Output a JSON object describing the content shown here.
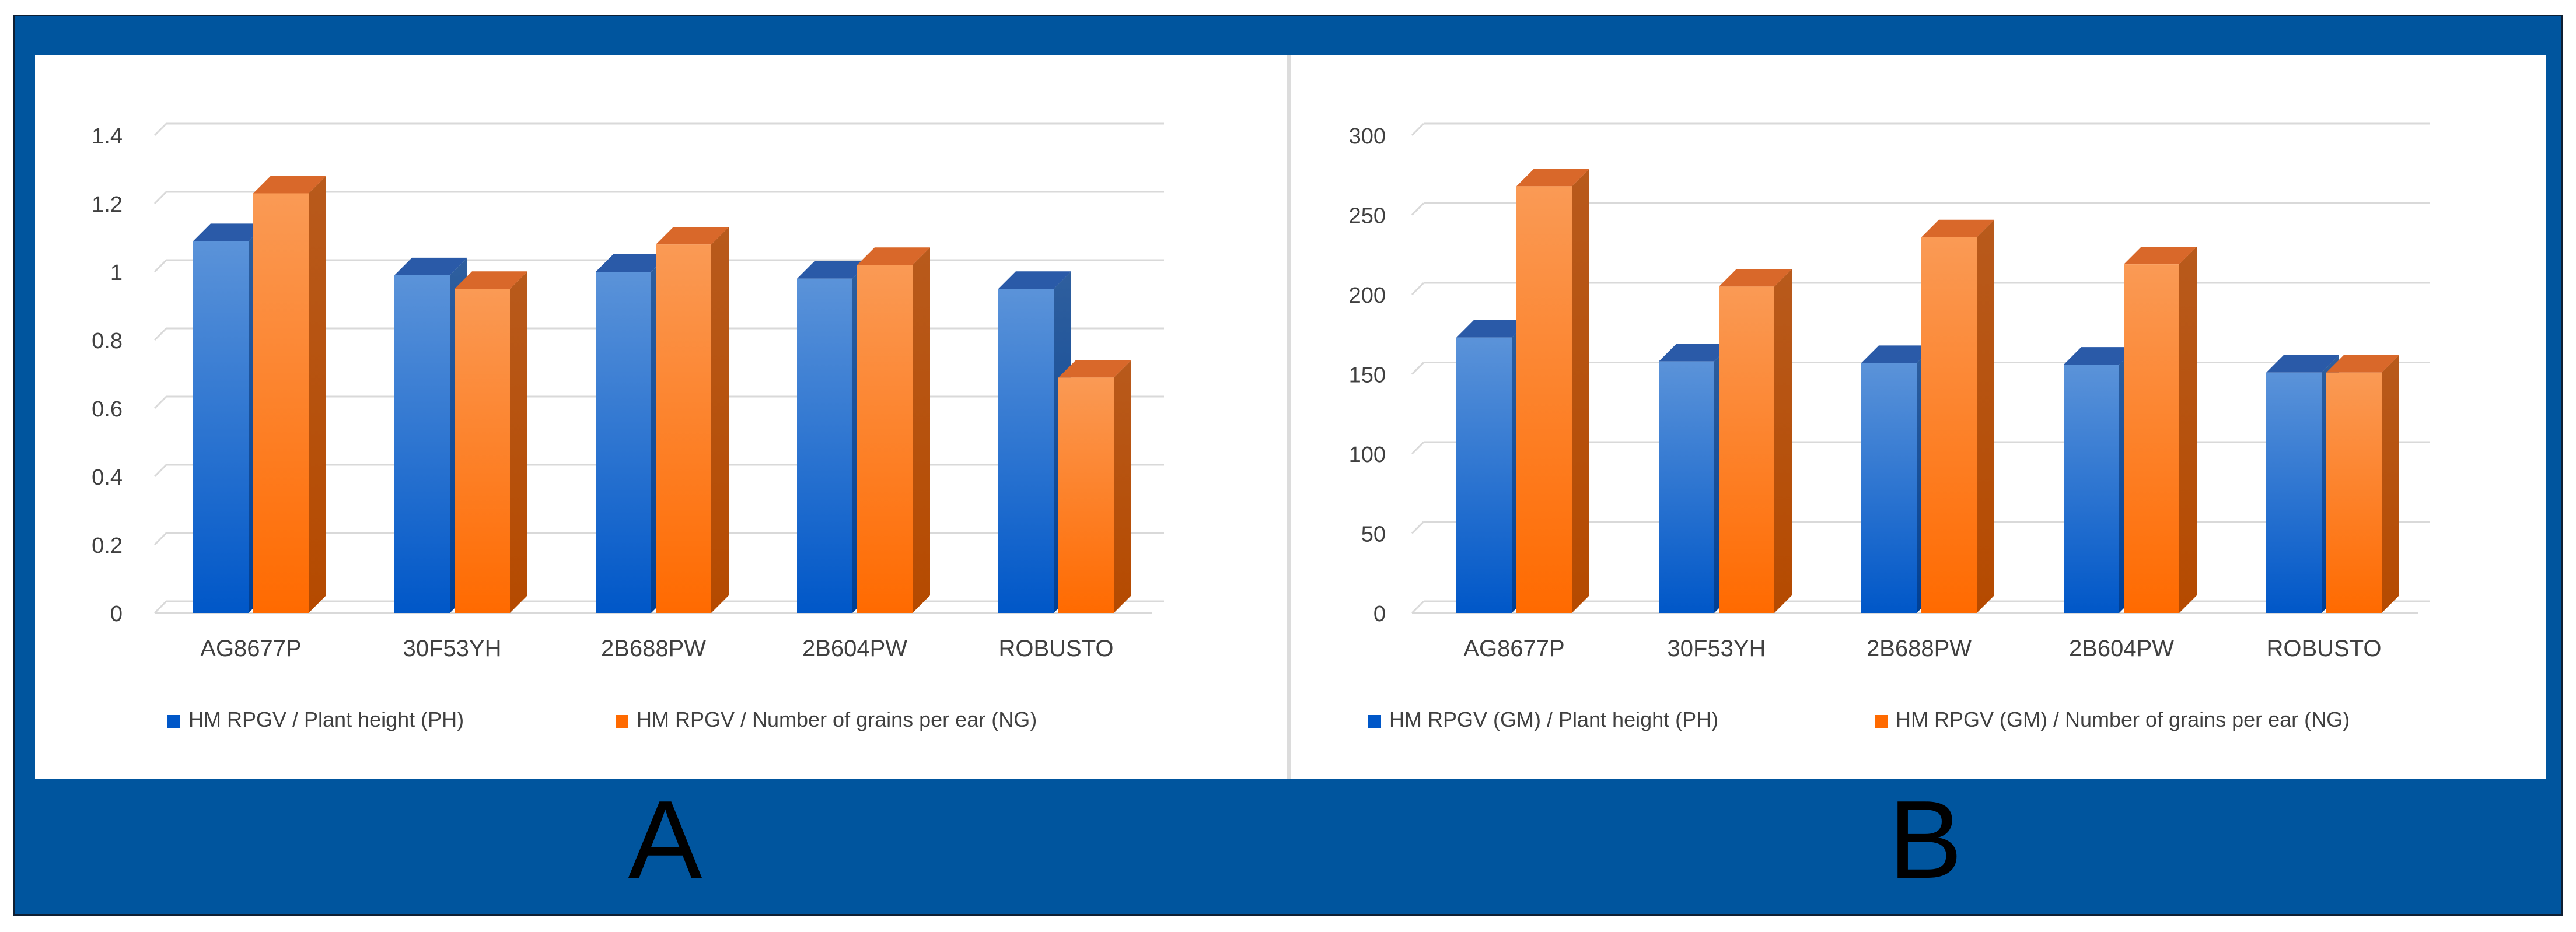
{
  "colors": {
    "frame": "#00559e",
    "blue_light": "#5b93d9",
    "blue_dark": "#0057c8",
    "orange_light": "#fa9a55",
    "orange_dark": "#ff6a00",
    "grid": "#d9d9d9",
    "text": "#404040"
  },
  "chart_data": [
    {
      "type": "bar",
      "panel": "A",
      "title": "",
      "categories": [
        "AG8677P",
        "30F53YH",
        "2B688PW",
        "2B604PW",
        "ROBUSTO"
      ],
      "series": [
        {
          "name": "HM RPGV / Plant height (PH)",
          "color": "blue",
          "values": [
            1.09,
            0.99,
            1.0,
            0.98,
            0.95
          ]
        },
        {
          "name": "HM RPGV / Number of grains per ear (NG)",
          "color": "orange",
          "values": [
            1.23,
            0.95,
            1.08,
            1.02,
            0.69
          ]
        }
      ],
      "ylim": [
        0,
        1.4
      ],
      "yticks": [
        "0",
        "0.2",
        "0.4",
        "0.6",
        "0.8",
        "1",
        "1.2",
        "1.4"
      ],
      "ytick_values": [
        0,
        0.2,
        0.4,
        0.6,
        0.8,
        1,
        1.2,
        1.4
      ],
      "xlabel": "",
      "ylabel": "",
      "legend": "bottom",
      "grid": true
    },
    {
      "type": "bar",
      "panel": "B",
      "title": "",
      "categories": [
        "AG8677P",
        "30F53YH",
        "2B688PW",
        "2B604PW",
        "ROBUSTO"
      ],
      "series": [
        {
          "name": "HM RPGV (GM) / Plant height (PH)",
          "color": "blue",
          "values": [
            173,
            158,
            157,
            156,
            151
          ]
        },
        {
          "name": "HM RPGV (GM) / Number of grains per ear (NG)",
          "color": "orange",
          "values": [
            268,
            205,
            236,
            219,
            151
          ]
        }
      ],
      "ylim": [
        0,
        300
      ],
      "yticks": [
        "0",
        "50",
        "100",
        "150",
        "200",
        "250",
        "300"
      ],
      "ytick_values": [
        0,
        50,
        100,
        150,
        200,
        250,
        300
      ],
      "xlabel": "",
      "ylabel": "",
      "legend": "bottom",
      "grid": true
    }
  ],
  "panel_labels": {
    "a": "A",
    "b": "B"
  }
}
